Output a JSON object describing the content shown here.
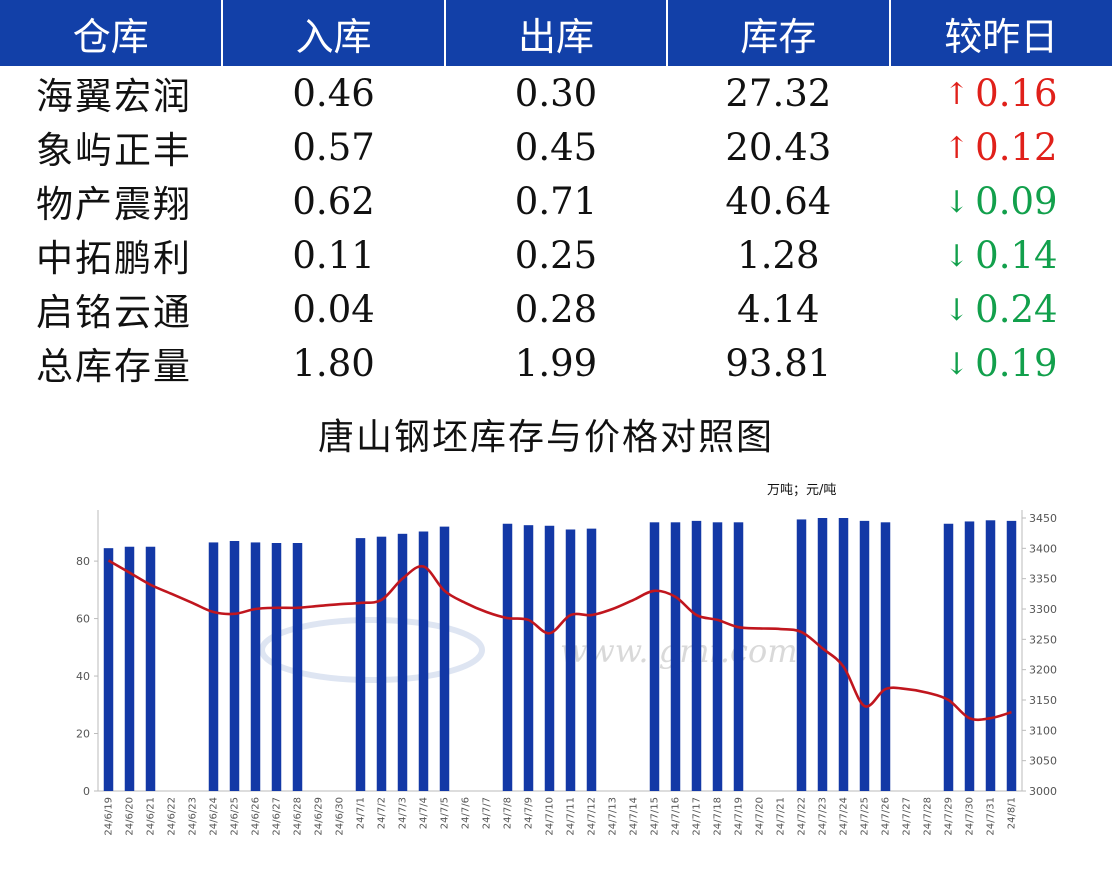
{
  "table": {
    "headers": [
      "仓库",
      "入库",
      "出库",
      "库存",
      "较昨日"
    ],
    "rows": [
      {
        "warehouse": "海翼宏润",
        "inbound": "0.46",
        "outbound": "0.30",
        "stock": "27.32",
        "direction": "up",
        "arrow": "↑",
        "change": "0.16"
      },
      {
        "warehouse": "象屿正丰",
        "inbound": "0.57",
        "outbound": "0.45",
        "stock": "20.43",
        "direction": "up",
        "arrow": "↑",
        "change": "0.12"
      },
      {
        "warehouse": "物产震翔",
        "inbound": "0.62",
        "outbound": "0.71",
        "stock": "40.64",
        "direction": "down",
        "arrow": "↓",
        "change": "0.09"
      },
      {
        "warehouse": "中拓鹏利",
        "inbound": "0.11",
        "outbound": "0.25",
        "stock": "1.28",
        "direction": "down",
        "arrow": "↓",
        "change": "0.14"
      },
      {
        "warehouse": "启铭云通",
        "inbound": "0.04",
        "outbound": "0.28",
        "stock": "4.14",
        "direction": "down",
        "arrow": "↓",
        "change": "0.24"
      },
      {
        "warehouse": "总库存量",
        "inbound": "1.80",
        "outbound": "1.99",
        "stock": "93.81",
        "direction": "down",
        "arrow": "↓",
        "change": "0.19"
      }
    ]
  },
  "colors": {
    "header_bg": "#1240A8",
    "up": "#e0201a",
    "down": "#12a04c",
    "bar": "#1338A6",
    "line": "#C0161E"
  },
  "chart_data": {
    "type": "bar",
    "title": "唐山钢坯库存与价格对照图",
    "unit_label": "万吨；元/吨",
    "watermark": "www.lgmi.com",
    "categories": [
      "24/6/19",
      "24/6/20",
      "24/6/21",
      "24/6/22",
      "24/6/23",
      "24/6/24",
      "24/6/25",
      "24/6/26",
      "24/6/27",
      "24/6/28",
      "24/6/29",
      "24/6/30",
      "24/7/1",
      "24/7/2",
      "24/7/3",
      "24/7/4",
      "24/7/5",
      "24/7/6",
      "24/7/7",
      "24/7/8",
      "24/7/9",
      "24/7/10",
      "24/7/11",
      "24/7/12",
      "24/7/13",
      "24/7/14",
      "24/7/15",
      "24/7/16",
      "24/7/17",
      "24/7/18",
      "24/7/19",
      "24/7/20",
      "24/7/21",
      "24/7/22",
      "24/7/23",
      "24/7/24",
      "24/7/25",
      "24/7/26",
      "24/7/27",
      "24/7/28",
      "24/7/29",
      "24/7/30",
      "24/7/31",
      "24/8/1"
    ],
    "series": [
      {
        "kind": "bar",
        "axis": "left",
        "values": [
          84.5,
          85,
          85,
          null,
          null,
          86.5,
          87,
          86.5,
          86.3,
          86.3,
          null,
          null,
          88,
          88.5,
          89.5,
          90.3,
          92,
          null,
          null,
          93,
          92.5,
          92.3,
          91,
          91.3,
          null,
          null,
          93.5,
          93.5,
          94,
          93.5,
          93.5,
          null,
          null,
          94.5,
          95,
          95,
          94,
          93.5,
          null,
          null,
          93,
          93.8,
          94.2,
          94
        ]
      },
      {
        "kind": "line",
        "axis": "right",
        "values": [
          3380,
          3360,
          3340,
          3325,
          3310,
          3295,
          3292,
          3300,
          3302,
          3302,
          3305,
          3308,
          3310,
          3315,
          3350,
          3370,
          3330,
          3310,
          3295,
          3285,
          3282,
          3260,
          3290,
          3290,
          3300,
          3315,
          3330,
          3320,
          3290,
          3282,
          3270,
          3268,
          3267,
          3262,
          3235,
          3205,
          3140,
          3168,
          3168,
          3162,
          3150,
          3120,
          3120,
          3130
        ]
      }
    ],
    "yleft": {
      "ticks": [
        0,
        20,
        40,
        60,
        80
      ],
      "lim": [
        0,
        95
      ]
    },
    "yright": {
      "ticks": [
        3000,
        3050,
        3100,
        3150,
        3200,
        3250,
        3300,
        3350,
        3400,
        3450
      ],
      "lim": [
        3000,
        3450
      ]
    },
    "grid": false,
    "legend": "none"
  }
}
